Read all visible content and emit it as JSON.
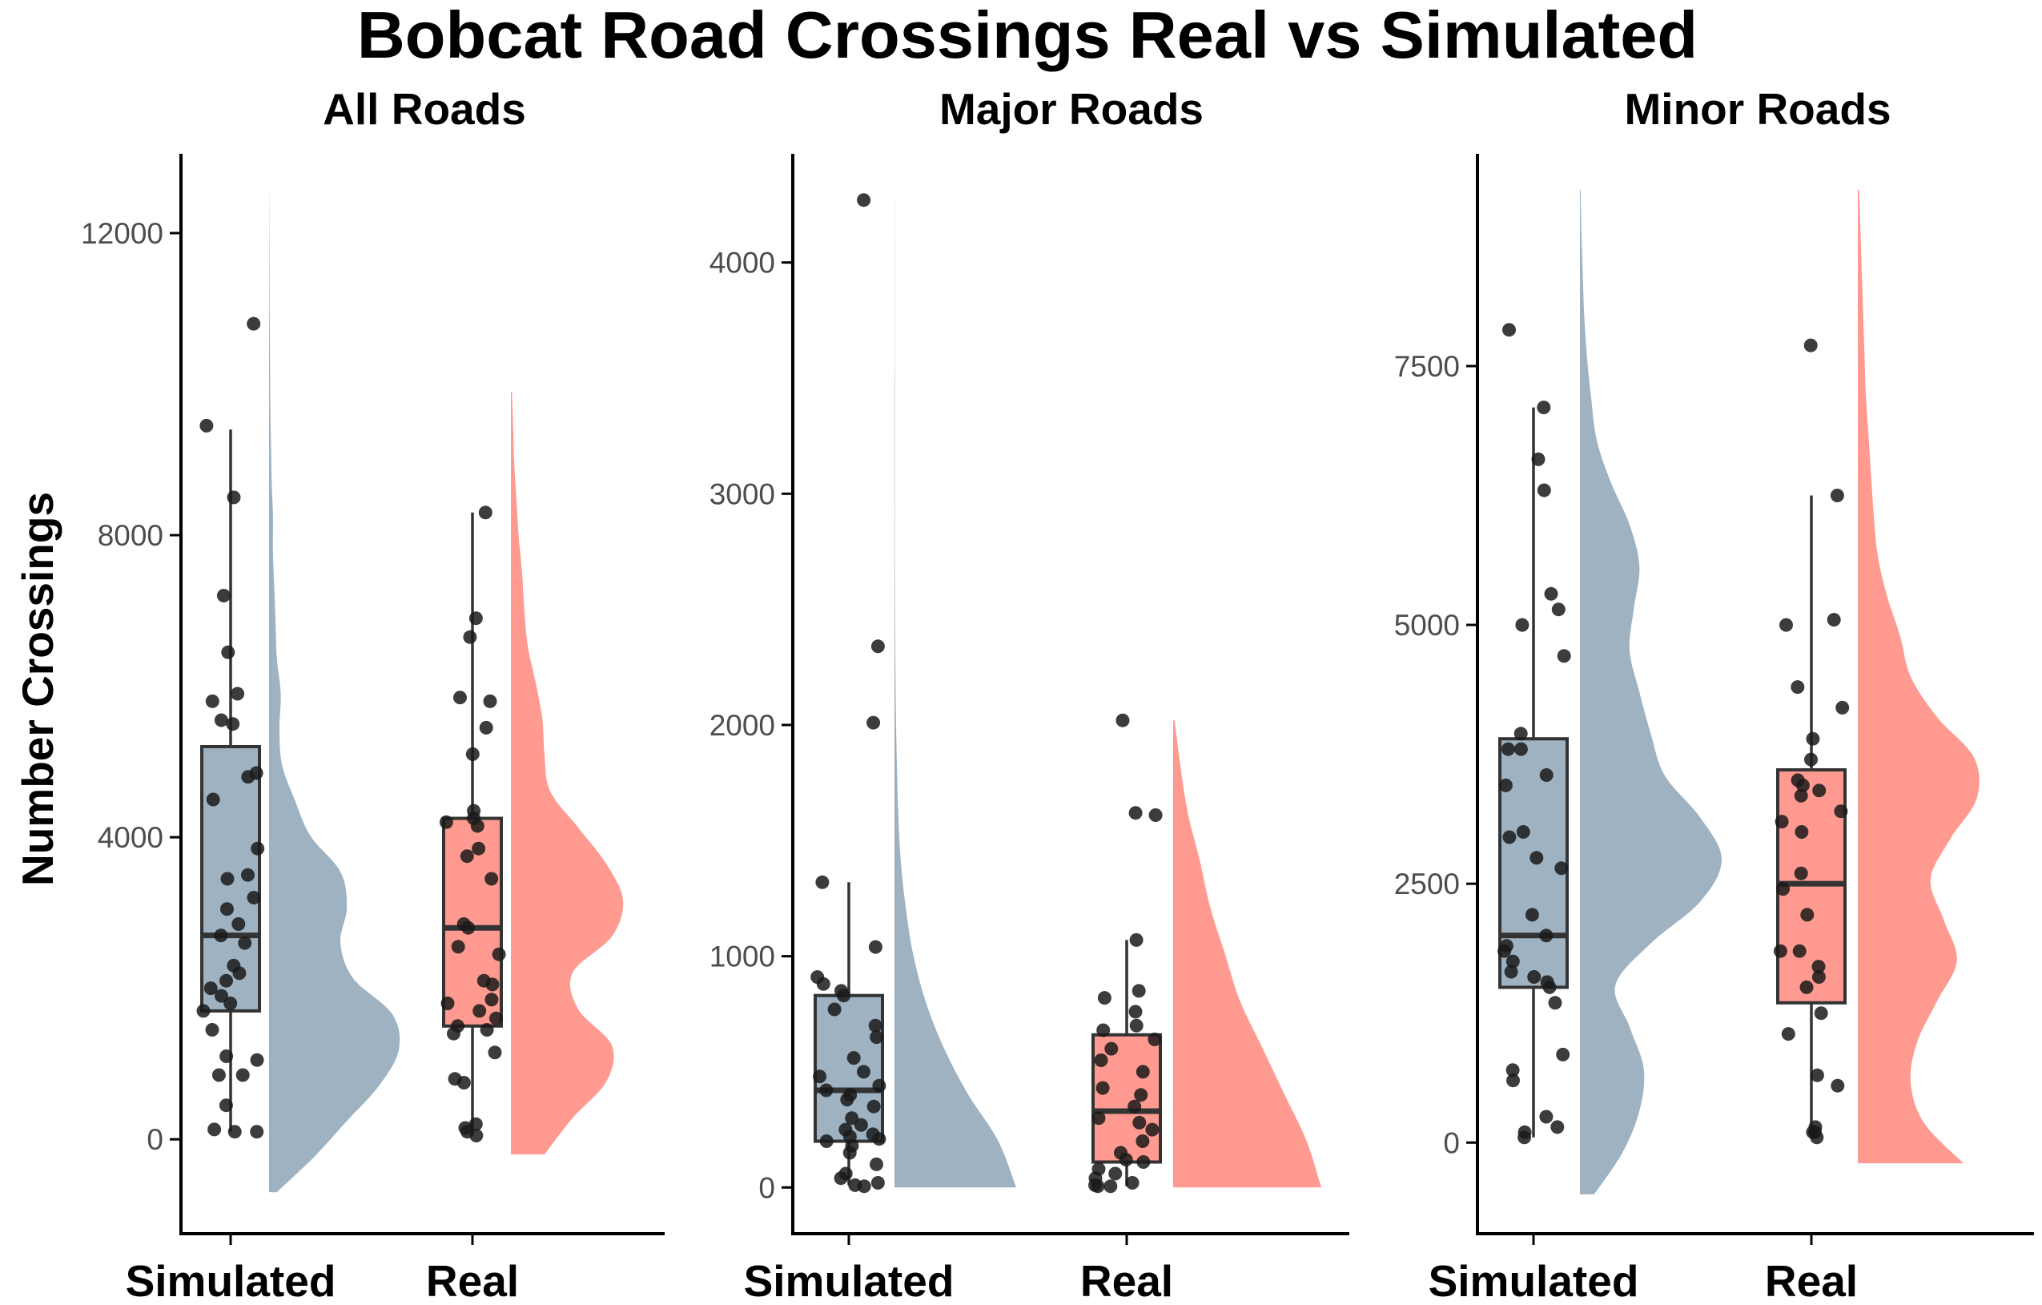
{
  "title": "Bobcat Road Crossings Real vs Simulated",
  "ylabel": "Number Crossings",
  "colors": {
    "Simulated": "#9fb2c1",
    "Real": "#ff9a90",
    "points": "#1a1a1a",
    "box_border": "#333333",
    "axis": "#000000"
  },
  "chart_data": [
    {
      "type": "raincloud",
      "title": "All Roads",
      "xlabel": "",
      "ylabel": "Number Crossings",
      "categories": [
        "Simulated",
        "Real"
      ],
      "ylim": [
        -1250,
        13050
      ],
      "yticks": [
        0,
        4000,
        8000,
        12000
      ],
      "tick_labels": [
        "0",
        "4000",
        "8000",
        "12000"
      ],
      "series": [
        {
          "name": "Simulated",
          "box": {
            "lower_whisker": 100,
            "q1": 1700,
            "median": 2700,
            "q3": 5200,
            "upper_whisker": 9400
          },
          "points": [
            10800,
            9450,
            8500,
            7200,
            6450,
            5900,
            5800,
            5550,
            5500,
            4850,
            4800,
            4500,
            3850,
            3500,
            3450,
            3200,
            3050,
            2850,
            2700,
            2600,
            2300,
            2200,
            2100,
            2000,
            1900,
            1800,
            1700,
            1450,
            1100,
            1050,
            850,
            850,
            450,
            130,
            100,
            100
          ],
          "density_range": [
            -700,
            12500
          ],
          "density": [
            0.06,
            0.35,
            0.6,
            0.85,
            1.0,
            0.95,
            0.65,
            0.55,
            0.6,
            0.55,
            0.32,
            0.2,
            0.1,
            0.08,
            0.09,
            0.06,
            0.05,
            0.04,
            0.03,
            0.03,
            0.02,
            0.015,
            0.01,
            0.008,
            0.006,
            0.004,
            0.003,
            0.002,
            0.001
          ]
        },
        {
          "name": "Real",
          "box": {
            "lower_whisker": 50,
            "q1": 1500,
            "median": 2800,
            "q3": 4250,
            "upper_whisker": 8300
          },
          "points": [
            8300,
            6900,
            6650,
            5850,
            5800,
            5450,
            5100,
            4350,
            4250,
            4200,
            4150,
            3850,
            3750,
            3450,
            2850,
            2800,
            2550,
            2450,
            2100,
            2050,
            1850,
            1800,
            1700,
            1600,
            1500,
            1450,
            1400,
            1150,
            800,
            750,
            200,
            150,
            100,
            50
          ],
          "density_range": [
            -200,
            9900
          ],
          "density": [
            0.3,
            0.55,
            0.85,
            0.9,
            0.6,
            0.55,
            0.9,
            1.0,
            0.85,
            0.6,
            0.35,
            0.3,
            0.28,
            0.22,
            0.15,
            0.12,
            0.1,
            0.07,
            0.05,
            0.03,
            0.02,
            0.01
          ]
        }
      ]
    },
    {
      "type": "raincloud",
      "title": "Major Roads",
      "xlabel": "",
      "ylabel": "",
      "categories": [
        "Simulated",
        "Real"
      ],
      "ylim": [
        -200,
        4470
      ],
      "yticks": [
        0,
        1000,
        2000,
        3000,
        4000
      ],
      "tick_labels": [
        "0",
        "1000",
        "2000",
        "3000",
        "4000"
      ],
      "series": [
        {
          "name": "Simulated",
          "box": {
            "lower_whisker": 10,
            "q1": 200,
            "median": 420,
            "q3": 830,
            "upper_whisker": 1320
          },
          "points": [
            4270,
            2340,
            2010,
            1320,
            1040,
            910,
            880,
            850,
            830,
            770,
            700,
            650,
            560,
            500,
            480,
            440,
            420,
            400,
            380,
            350,
            300,
            270,
            250,
            230,
            220,
            210,
            200,
            180,
            150,
            100,
            60,
            40,
            20,
            10,
            5
          ],
          "density_range": [
            0,
            4270
          ],
          "density": [
            1.0,
            0.85,
            0.6,
            0.4,
            0.25,
            0.15,
            0.09,
            0.05,
            0.03,
            0.02,
            0.012,
            0.008,
            0.005,
            0.004,
            0.003,
            0.003,
            0.003,
            0.003,
            0.002,
            0.002,
            0.002,
            0.001
          ]
        },
        {
          "name": "Real",
          "box": {
            "lower_whisker": 5,
            "q1": 110,
            "median": 330,
            "q3": 660,
            "upper_whisker": 1070
          },
          "points": [
            2020,
            1620,
            1610,
            1070,
            850,
            820,
            760,
            700,
            680,
            640,
            600,
            550,
            500,
            430,
            400,
            350,
            300,
            280,
            250,
            200,
            150,
            120,
            110,
            80,
            60,
            40,
            20,
            10,
            5,
            5
          ],
          "density_range": [
            0,
            2020
          ],
          "density": [
            1.0,
            0.9,
            0.75,
            0.6,
            0.45,
            0.35,
            0.25,
            0.18,
            0.1,
            0.05,
            0.01
          ]
        }
      ]
    },
    {
      "type": "raincloud",
      "title": "Minor Roads",
      "xlabel": "",
      "ylabel": "",
      "categories": [
        "Simulated",
        "Real"
      ],
      "ylim": [
        -880,
        9550
      ],
      "yticks": [
        0,
        2500,
        5000,
        7500
      ],
      "tick_labels": [
        "0",
        "2500",
        "5000",
        "7500"
      ],
      "series": [
        {
          "name": "Simulated",
          "box": {
            "lower_whisker": 50,
            "q1": 1500,
            "median": 2000,
            "q3": 3900,
            "upper_whisker": 7100
          },
          "points": [
            7850,
            7100,
            6600,
            6300,
            5300,
            5150,
            5000,
            4700,
            3950,
            3800,
            3800,
            3550,
            3450,
            3000,
            2950,
            2750,
            2650,
            2200,
            2000,
            1900,
            1850,
            1750,
            1650,
            1600,
            1550,
            1500,
            1350,
            850,
            700,
            600,
            250,
            150,
            100,
            50
          ],
          "density_range": [
            -500,
            9200
          ],
          "density": [
            0.1,
            0.3,
            0.42,
            0.45,
            0.35,
            0.25,
            0.5,
            0.85,
            1.0,
            0.85,
            0.6,
            0.5,
            0.42,
            0.35,
            0.38,
            0.42,
            0.35,
            0.22,
            0.12,
            0.08,
            0.05,
            0.03,
            0.02,
            0.01,
            0.005
          ]
        },
        {
          "name": "Real",
          "box": {
            "lower_whisker": 50,
            "q1": 1350,
            "median": 2500,
            "q3": 3600,
            "upper_whisker": 6250
          },
          "points": [
            7700,
            6250,
            5050,
            5000,
            4400,
            4200,
            3900,
            3700,
            3500,
            3450,
            3400,
            3350,
            3200,
            3100,
            3000,
            2600,
            2450,
            2200,
            1850,
            1850,
            1700,
            1600,
            1500,
            1250,
            1050,
            650,
            550,
            150,
            100,
            100,
            50
          ],
          "density_range": [
            -200,
            9200
          ],
          "density": [
            0.8,
            0.5,
            0.4,
            0.45,
            0.6,
            0.75,
            0.65,
            0.55,
            0.7,
            0.9,
            0.88,
            0.6,
            0.4,
            0.32,
            0.22,
            0.15,
            0.12,
            0.1,
            0.08,
            0.06,
            0.05,
            0.04,
            0.03,
            0.02,
            0.01
          ]
        }
      ]
    }
  ]
}
